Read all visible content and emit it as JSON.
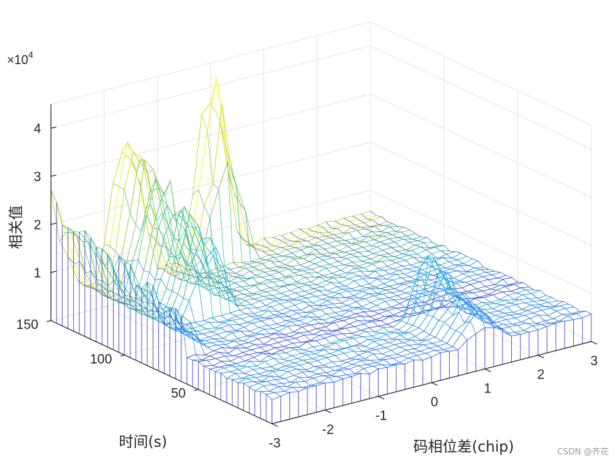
{
  "chart_data": {
    "type": "surface-mesh-3d",
    "xlabel": "码相位差(chip)",
    "ylabel": "时间(s)",
    "zlabel": "相关值",
    "exponent_label": "×10",
    "exponent_power": "4",
    "x_ticks": [
      "-3",
      "-2",
      "-1",
      "0",
      "1",
      "2",
      "3"
    ],
    "x_tick_values": [
      -3,
      -2,
      -1,
      0,
      1,
      2,
      3
    ],
    "y_ticks": [
      "50",
      "100",
      "150"
    ],
    "y_tick_values": [
      50,
      100,
      150
    ],
    "z_ticks": [
      "1",
      "2",
      "3",
      "4"
    ],
    "z_tick_values": [
      1,
      2,
      3,
      4
    ],
    "xlim": [
      -3,
      3
    ],
    "ylim": [
      0,
      150
    ],
    "zlim": [
      0,
      4.5
    ],
    "z_multiplier": 10000,
    "grid": true,
    "colormap": [
      "#3e26a8",
      "#2d6cf0",
      "#19b2d6",
      "#3fc57e",
      "#c9c22b",
      "#f9fb0e"
    ],
    "peaks": [
      {
        "x": 0.0,
        "t_from": 150,
        "t_to": 135,
        "z": 4.3
      },
      {
        "x": -1.6,
        "t_from": 150,
        "t_to": 90,
        "z": 3.7
      },
      {
        "x": -3.0,
        "t_from": 150,
        "t_to": 60,
        "z": 2.4
      },
      {
        "x": 1.0,
        "t_from": 40,
        "t_to": 0,
        "z": 1.8
      }
    ],
    "noise_floor": 0.5
  },
  "watermark": "CSDN @齐花"
}
